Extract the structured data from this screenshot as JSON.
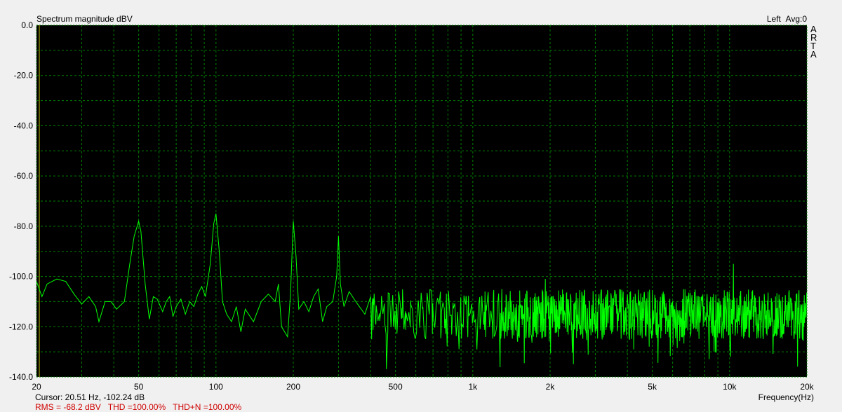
{
  "header": {
    "title": "Spectrum magnitude dBV",
    "channel": "Left",
    "avg": "Avg:0",
    "brand": [
      "A",
      "R",
      "T",
      "A"
    ]
  },
  "status": {
    "cursor": "Cursor: 20.51 Hz, -102.24 dB",
    "rms": "RMS =  -68.2 dBV",
    "thd": "THD =100.00%",
    "thdn": "THD+N =100.00%"
  },
  "chart_data": {
    "type": "line",
    "title": "Spectrum magnitude dBV",
    "xlabel": "Frequency(Hz)",
    "ylabel": "",
    "xscale": "log",
    "xlim": [
      20,
      20000
    ],
    "ylim": [
      -140,
      0
    ],
    "grid": true,
    "x_ticks": [
      {
        "v": 20,
        "l": "20"
      },
      {
        "v": 50,
        "l": "50"
      },
      {
        "v": 100,
        "l": "100"
      },
      {
        "v": 200,
        "l": "200"
      },
      {
        "v": 500,
        "l": "500"
      },
      {
        "v": 1000,
        "l": "1k"
      },
      {
        "v": 2000,
        "l": "2k"
      },
      {
        "v": 5000,
        "l": "5k"
      },
      {
        "v": 10000,
        "l": "10k"
      },
      {
        "v": 20000,
        "l": "20k"
      }
    ],
    "y_ticks": [
      {
        "v": 0,
        "l": "0.0"
      },
      {
        "v": -20,
        "l": "-20.0"
      },
      {
        "v": -40,
        "l": "-40.0"
      },
      {
        "v": -60,
        "l": "-60.0"
      },
      {
        "v": -80,
        "l": "-80.0"
      },
      {
        "v": -100,
        "l": "-100.0"
      },
      {
        "v": -120,
        "l": "-120.0"
      },
      {
        "v": -140,
        "l": "-140.0"
      }
    ],
    "cursor_hz": 20.51,
    "colors": {
      "trace": "#00ff00",
      "grid": "#008000",
      "background": "#000000",
      "cursor": "#808000",
      "status": "#d00000"
    },
    "series": [
      {
        "x": [
          20,
          21,
          22,
          24,
          26,
          28,
          30,
          32,
          34,
          35,
          37,
          39,
          41,
          44,
          46,
          48,
          50,
          51,
          53,
          55,
          57,
          59,
          62,
          64,
          66,
          68,
          70,
          73,
          76,
          79,
          82,
          85,
          88,
          91,
          95,
          98,
          100,
          103,
          106,
          110,
          115,
          120,
          125,
          130,
          140,
          150,
          160,
          170,
          175,
          180,
          190,
          195,
          200,
          205,
          210,
          220,
          230,
          240,
          250,
          260,
          270,
          285,
          295,
          300,
          305,
          315,
          330,
          350,
          380,
          400
        ],
        "y": [
          -102,
          -108,
          -103,
          -101,
          -102,
          -107,
          -111,
          -108,
          -112,
          -118,
          -110,
          -110,
          -113,
          -110,
          -96,
          -84,
          -78,
          -82,
          -103,
          -117,
          -108,
          -109,
          -114,
          -110,
          -108,
          -116,
          -112,
          -109,
          -115,
          -110,
          -112,
          -107,
          -104,
          -108,
          -95,
          -79,
          -75,
          -90,
          -110,
          -115,
          -118,
          -112,
          -122,
          -113,
          -118,
          -110,
          -107,
          -110,
          -103,
          -120,
          -124,
          -107,
          -78,
          -92,
          -113,
          -110,
          -114,
          -108,
          -105,
          -118,
          -112,
          -110,
          -100,
          -84,
          -103,
          -112,
          -106,
          -110,
          -115,
          -108
        ]
      }
    ],
    "noise_floor": {
      "from_hz": 400,
      "to_hz": 20000,
      "mean_db": -115,
      "spread_db": 10
    }
  }
}
